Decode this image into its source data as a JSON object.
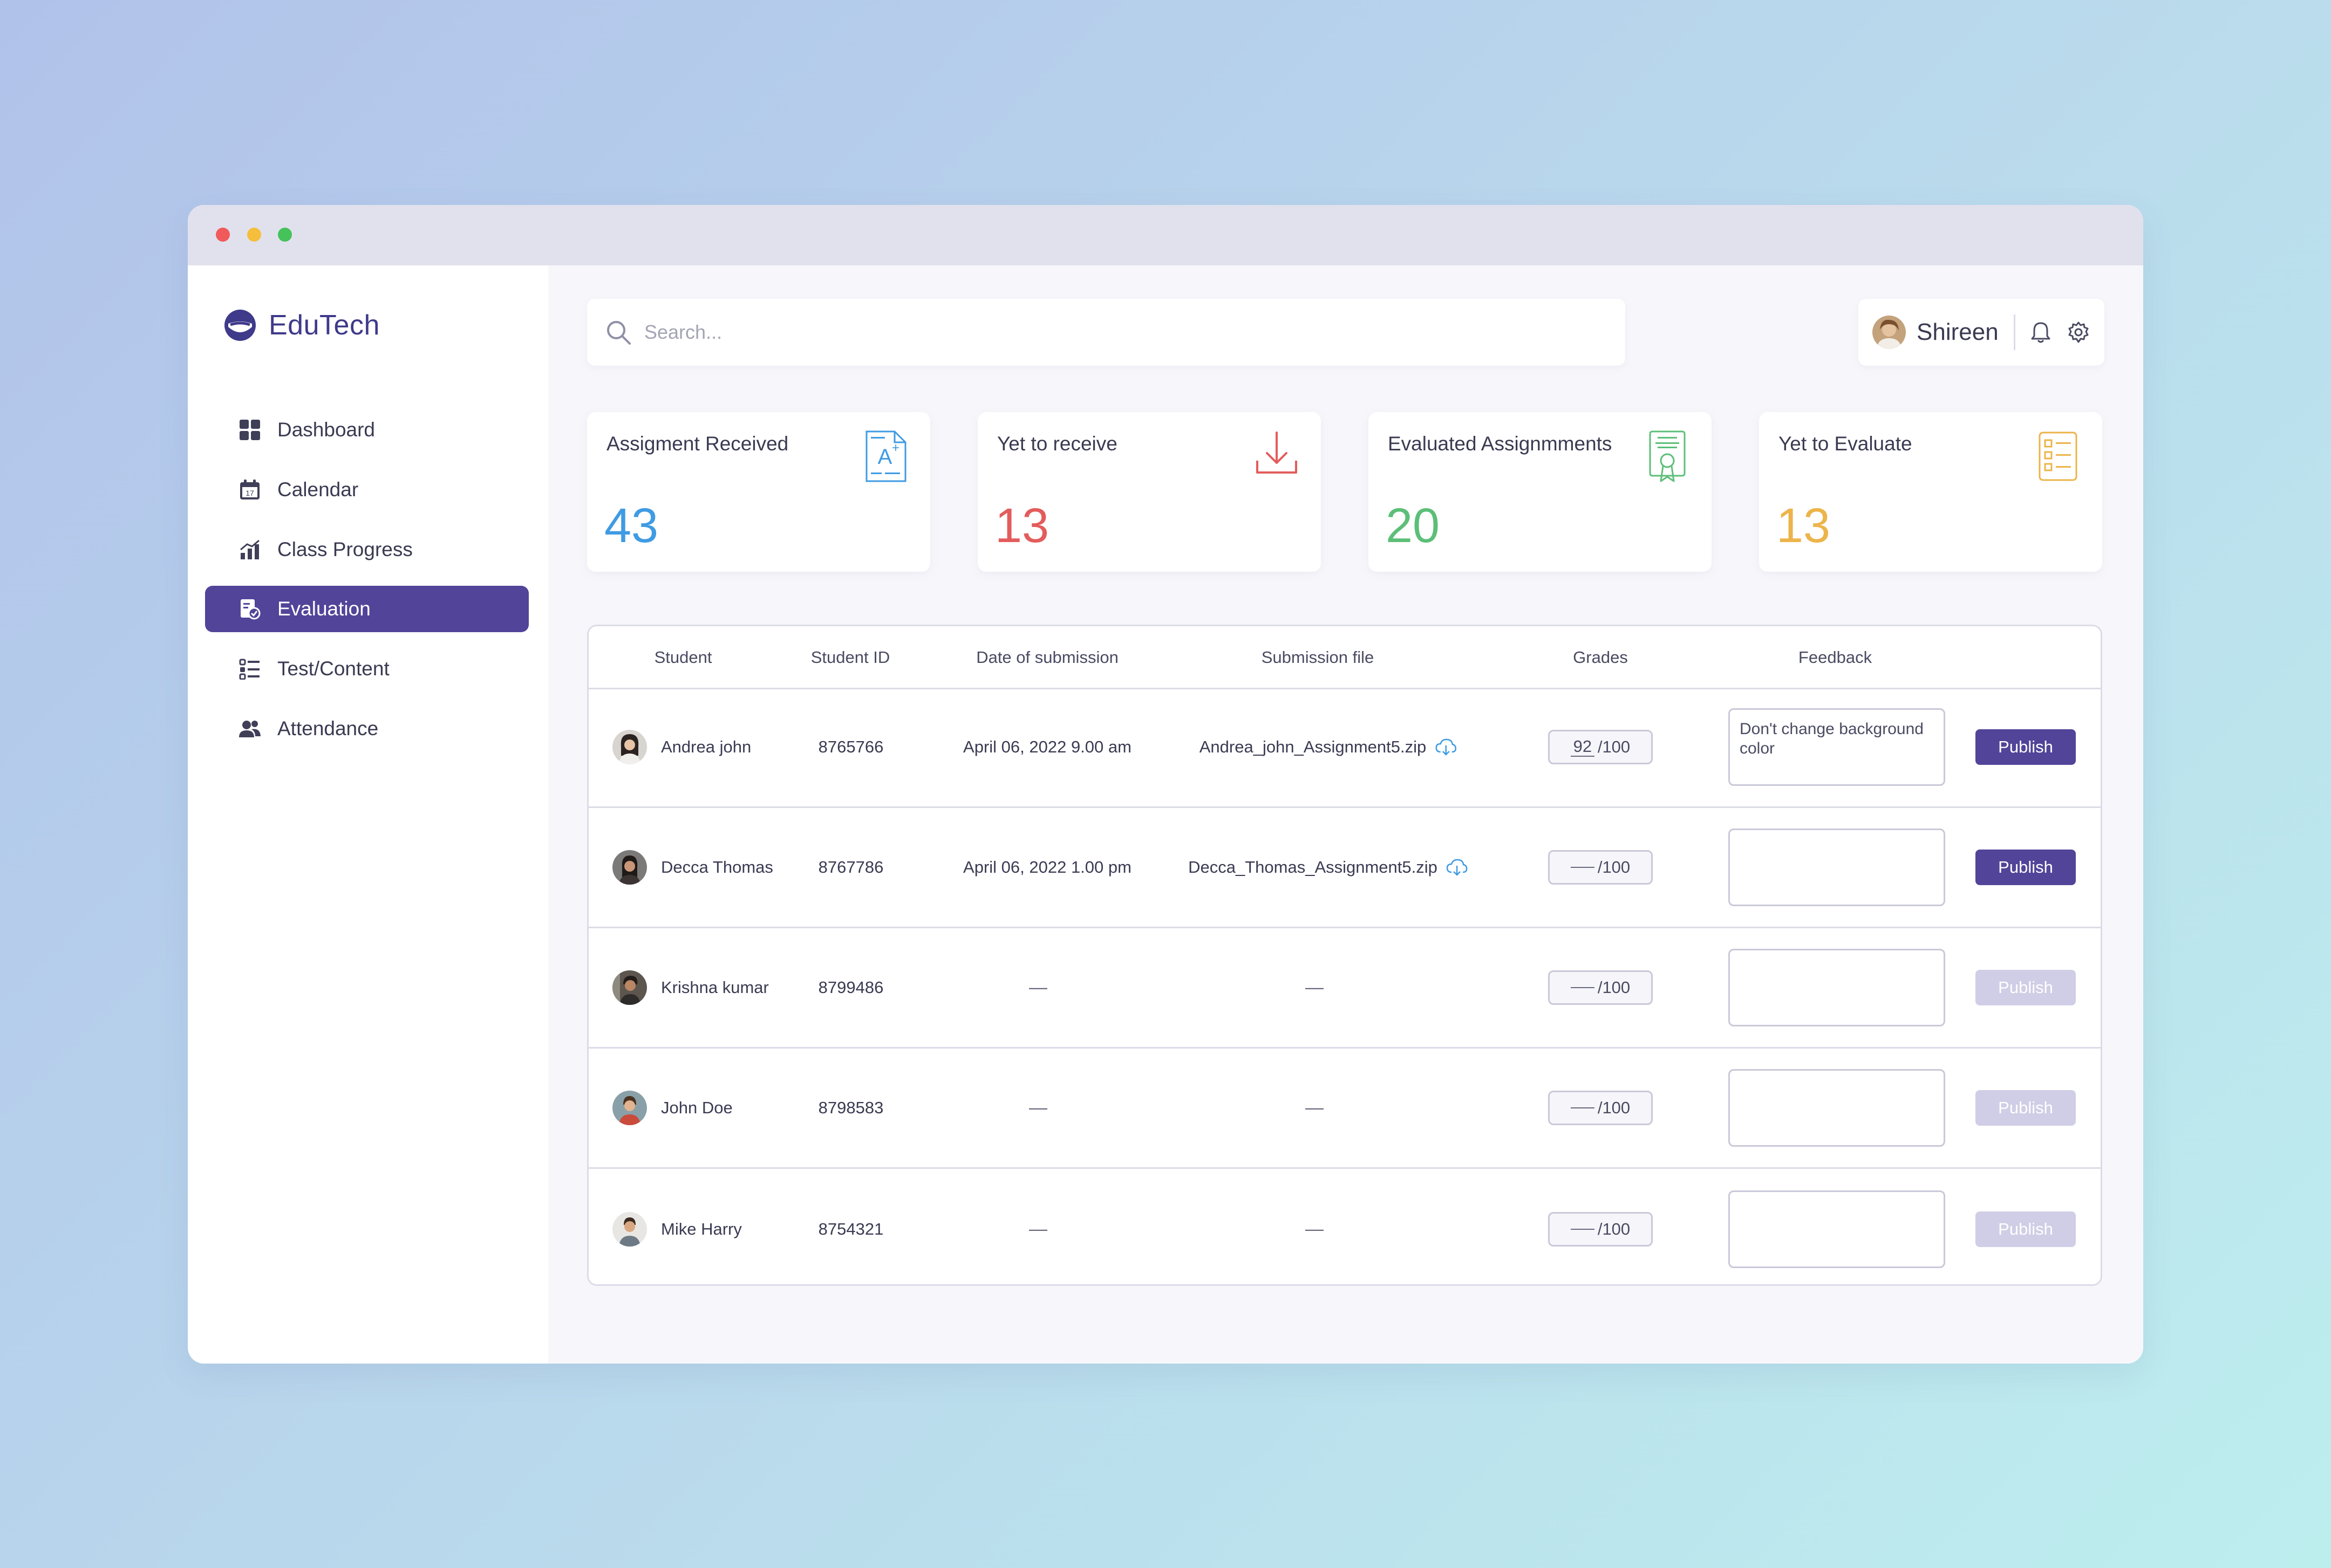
{
  "app": {
    "name": "EduTech",
    "brand_color": "#514499"
  },
  "sidebar": {
    "items": [
      {
        "label": "Dashboard",
        "icon": "grid-icon",
        "active": false
      },
      {
        "label": "Calendar",
        "icon": "calendar-icon",
        "active": false
      },
      {
        "label": "Class Progress",
        "icon": "bar-chart-icon",
        "active": false
      },
      {
        "label": "Evaluation",
        "icon": "evaluation-icon",
        "active": true
      },
      {
        "label": "Test/Content",
        "icon": "checklist-icon",
        "active": false
      },
      {
        "label": "Attendance",
        "icon": "users-icon",
        "active": false
      }
    ]
  },
  "header": {
    "search_placeholder": "Search...",
    "user_name": "Shireen"
  },
  "stats": [
    {
      "title": "Assigment Received",
      "value": "43",
      "color": "#3f9be3",
      "icon": "grade-document-icon"
    },
    {
      "title": "Yet to receive",
      "value": "13",
      "color": "#e35c5c",
      "icon": "download-icon"
    },
    {
      "title": "Evaluated Assignmments",
      "value": "20",
      "color": "#5cbf78",
      "icon": "certificate-icon"
    },
    {
      "title": "Yet to Evaluate",
      "value": "13",
      "color": "#ecb44a",
      "icon": "checklist-doc-icon"
    }
  ],
  "table": {
    "headers": {
      "student": "Student",
      "student_id": "Student ID",
      "date": "Date of submission",
      "file": "Submission file",
      "grades": "Grades",
      "feedback": "Feedback"
    },
    "rows": [
      {
        "name": "Andrea john",
        "id": "8765766",
        "date": "April 06, 2022 9.00 am",
        "file": "Andrea_john_Assignment5.zip",
        "grade": "92",
        "max": "/100",
        "feedback": "Don't change background color",
        "publish": "Publish",
        "publish_enabled": true
      },
      {
        "name": "Decca Thomas",
        "id": "8767786",
        "date": "April 06, 2022 1.00 pm",
        "file": "Decca_Thomas_Assignment5.zip",
        "grade": "",
        "max": "/100",
        "feedback": "",
        "publish": "Publish",
        "publish_enabled": true
      },
      {
        "name": "Krishna kumar",
        "id": "8799486",
        "date": "—",
        "file": "—",
        "grade": "",
        "max": "/100",
        "feedback": "",
        "publish": "Publish",
        "publish_enabled": false
      },
      {
        "name": "John Doe",
        "id": "8798583",
        "date": "—",
        "file": "—",
        "grade": "",
        "max": "/100",
        "feedback": "",
        "publish": "Publish",
        "publish_enabled": false
      },
      {
        "name": "Mike Harry",
        "id": "8754321",
        "date": "—",
        "file": "—",
        "grade": "",
        "max": "/100",
        "feedback": "",
        "publish": "Publish",
        "publish_enabled": false
      }
    ]
  }
}
